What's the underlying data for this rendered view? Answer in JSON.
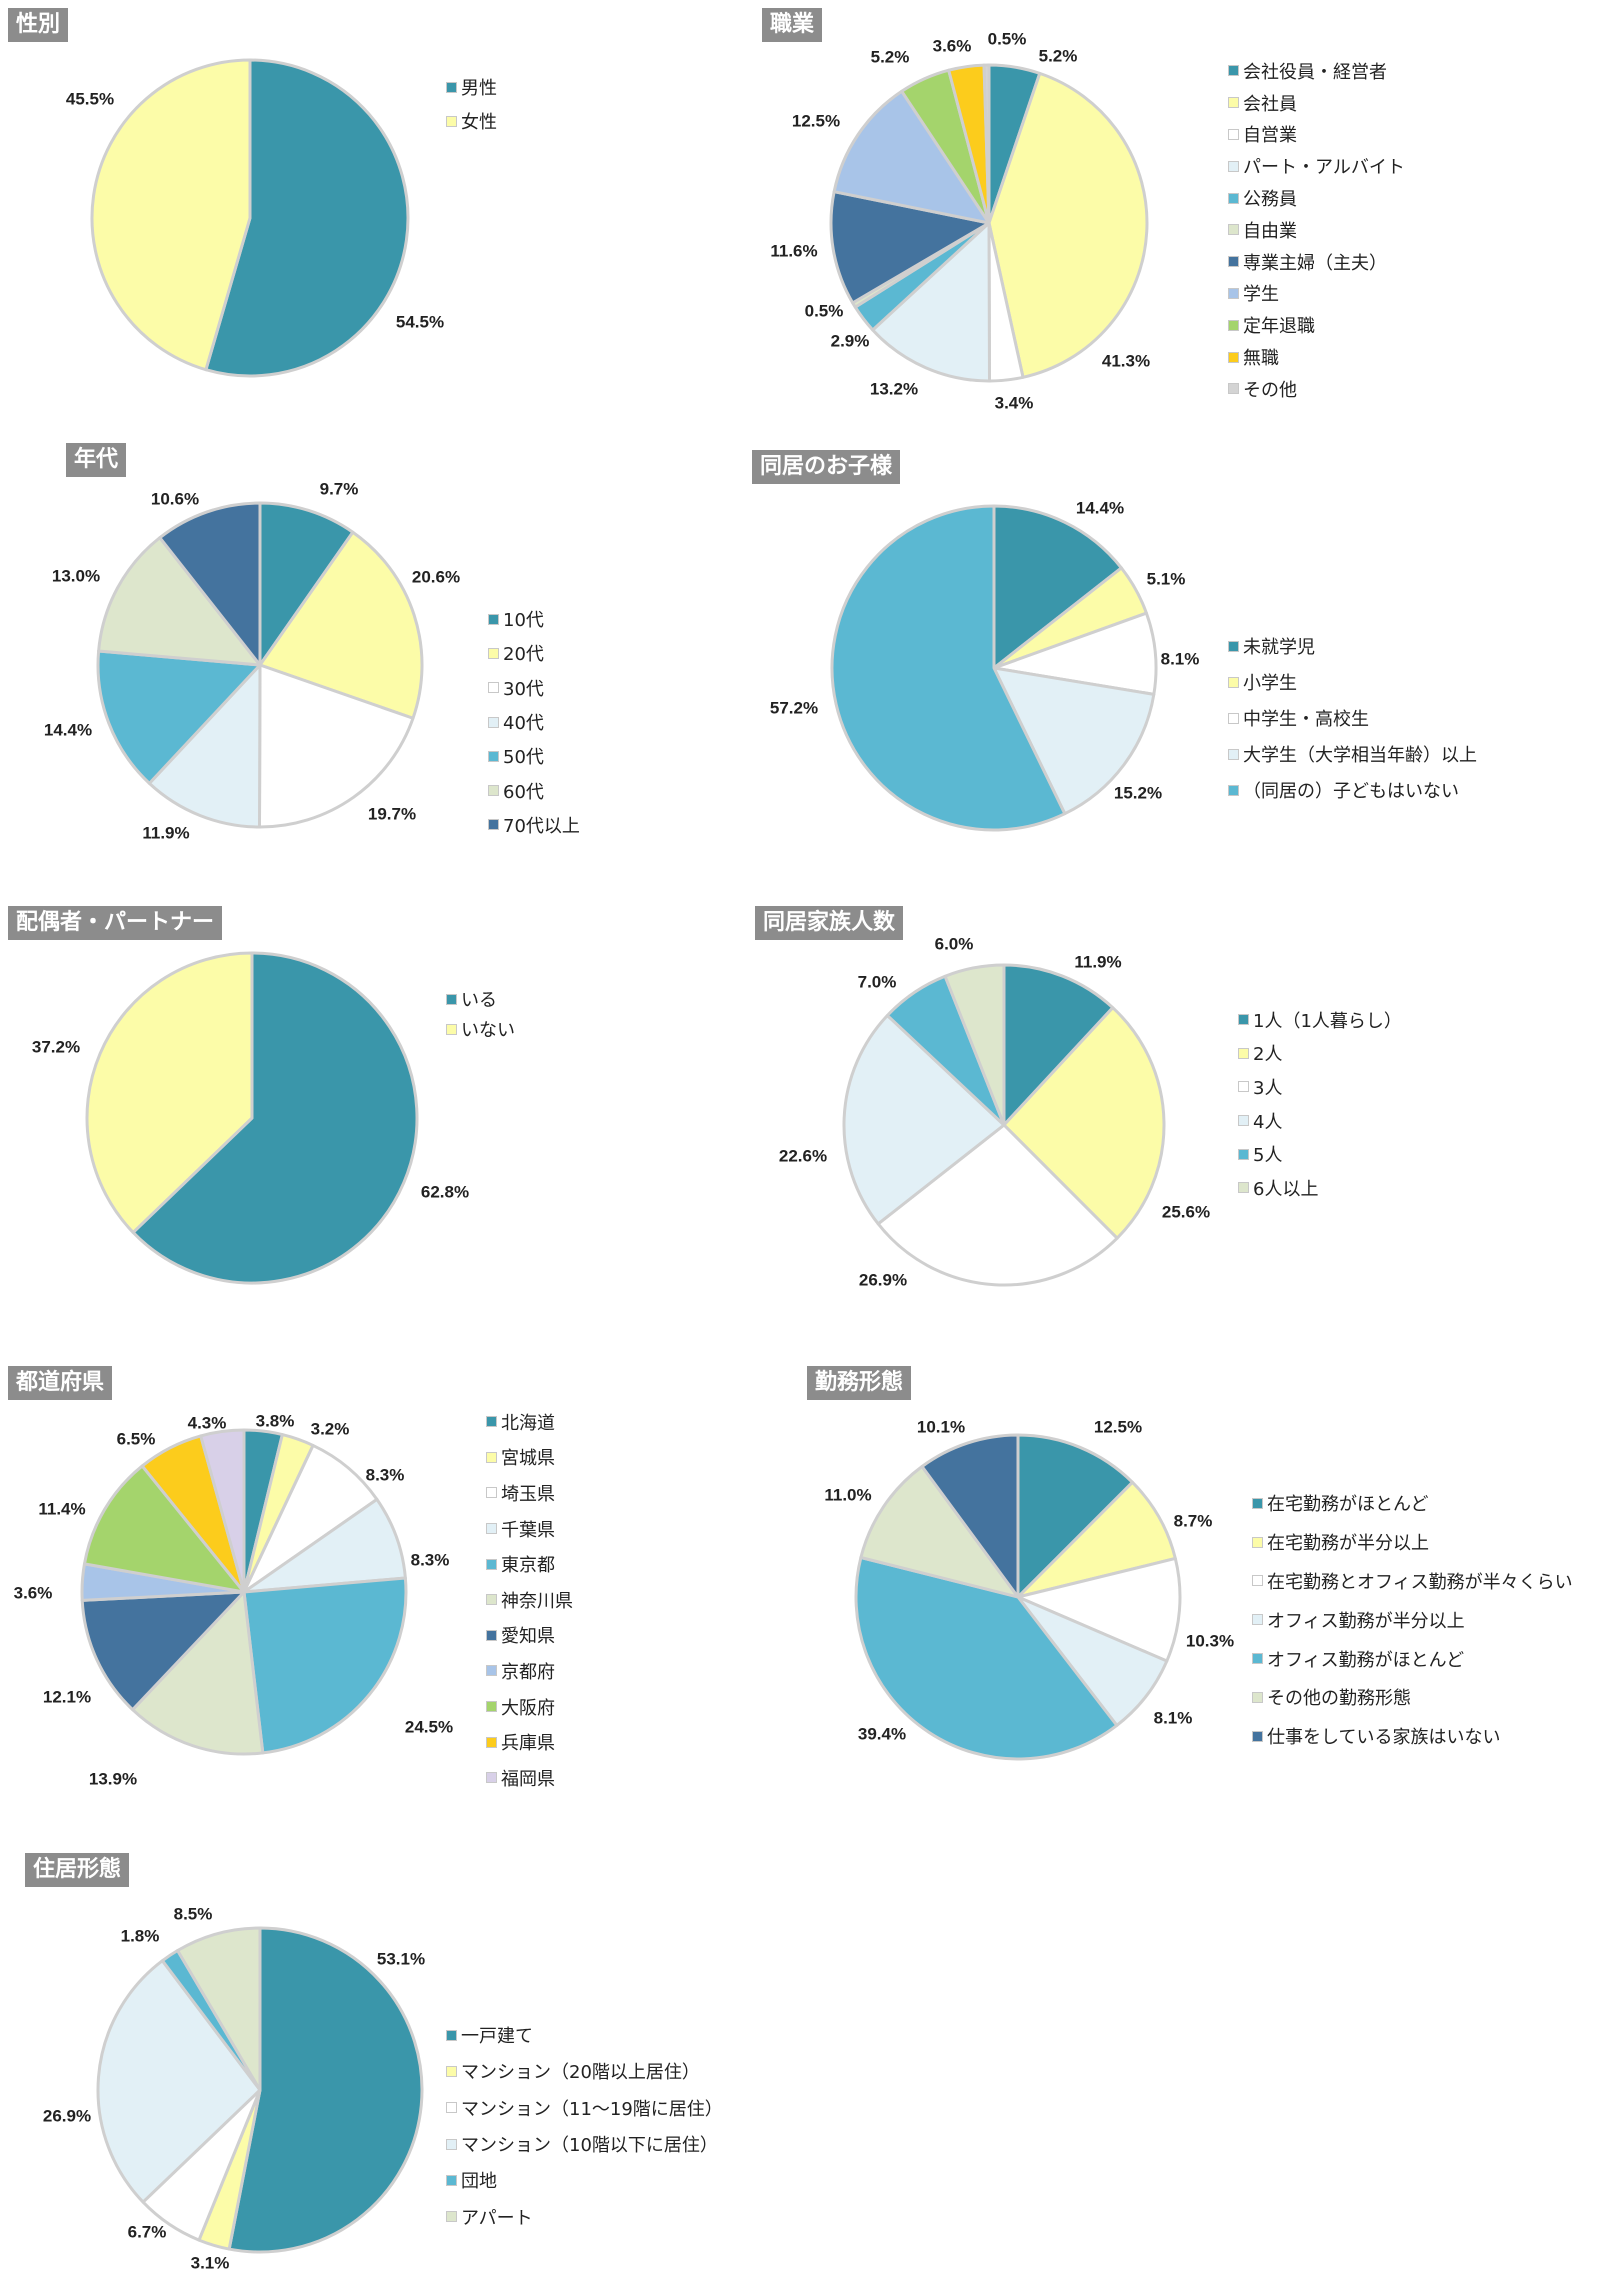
{
  "colors": [
    "#3a96aa",
    "#fcfca8",
    "#ffffff",
    "#e2f0f6",
    "#5bb8d2",
    "#dde6cc",
    "#44739e",
    "#a8c4e8",
    "#a4d46c",
    "#fccc1c",
    "#d4d4d4",
    "#d8d0e8"
  ],
  "chart_data": [
    {
      "id": "gender",
      "type": "pie",
      "title": "性別",
      "labels": [
        "男性",
        "女性"
      ],
      "values": [
        54.5,
        45.5
      ],
      "value_labels": [
        "54.5%",
        "45.5%"
      ],
      "colors": [
        "#3a96aa",
        "#fcfca8"
      ]
    },
    {
      "id": "occupation",
      "type": "pie",
      "title": "職業",
      "labels": [
        "会社役員・経営者",
        "会社員",
        "自営業",
        "パート・アルバイト",
        "公務員",
        "自由業",
        "専業主婦（主夫）",
        "学生",
        "定年退職",
        "無職",
        "その他"
      ],
      "values": [
        5.2,
        41.3,
        3.4,
        13.2,
        2.9,
        0.5,
        11.6,
        12.5,
        5.2,
        3.6,
        0.5
      ],
      "value_labels": [
        "5.2%",
        "41.3%",
        "3.4%",
        "13.2%",
        "2.9%",
        "0.5%",
        "11.6%",
        "12.5%",
        "5.2%",
        "3.6%",
        "0.5%"
      ],
      "colors": [
        "#3a96aa",
        "#fcfca8",
        "#ffffff",
        "#e2f0f6",
        "#5bb8d2",
        "#dde6cc",
        "#44739e",
        "#a8c4e8",
        "#a4d46c",
        "#fccc1c",
        "#d4d4d4"
      ]
    },
    {
      "id": "age",
      "type": "pie",
      "title": "年代",
      "labels": [
        "10代",
        "20代",
        "30代",
        "40代",
        "50代",
        "60代",
        "70代以上"
      ],
      "values": [
        9.7,
        20.6,
        19.7,
        11.9,
        14.4,
        13.0,
        10.6
      ],
      "value_labels": [
        "9.7%",
        "20.6%",
        "19.7%",
        "11.9%",
        "14.4%",
        "13.0%",
        "10.6%"
      ],
      "colors": [
        "#3a96aa",
        "#fcfca8",
        "#ffffff",
        "#e2f0f6",
        "#5bb8d2",
        "#dde6cc",
        "#44739e"
      ]
    },
    {
      "id": "children",
      "type": "pie",
      "title": "同居のお子様",
      "labels": [
        "未就学児",
        "小学生",
        "中学生・高校生",
        "大学生（大学相当年齢）以上",
        "（同居の）子どもはいない"
      ],
      "values": [
        14.4,
        5.1,
        8.1,
        15.2,
        57.2
      ],
      "value_labels": [
        "14.4%",
        "5.1%",
        "8.1%",
        "15.2%",
        "57.2%"
      ],
      "colors": [
        "#3a96aa",
        "#fcfca8",
        "#ffffff",
        "#e2f0f6",
        "#5bb8d2"
      ]
    },
    {
      "id": "partner",
      "type": "pie",
      "title": "配偶者・パートナー",
      "labels": [
        "いる",
        "いない"
      ],
      "values": [
        62.8,
        37.2
      ],
      "value_labels": [
        "62.8%",
        "37.2%"
      ],
      "colors": [
        "#3a96aa",
        "#fcfca8"
      ]
    },
    {
      "id": "household",
      "type": "pie",
      "title": "同居家族人数",
      "labels": [
        "1人（1人暮らし）",
        "2人",
        "3人",
        "4人",
        "5人",
        "6人以上"
      ],
      "values": [
        11.9,
        25.6,
        26.9,
        22.6,
        7.0,
        6.0
      ],
      "value_labels": [
        "11.9%",
        "25.6%",
        "26.9%",
        "22.6%",
        "7.0%",
        "6.0%"
      ],
      "colors": [
        "#3a96aa",
        "#fcfca8",
        "#ffffff",
        "#e2f0f6",
        "#5bb8d2",
        "#dde6cc"
      ]
    },
    {
      "id": "prefecture",
      "type": "pie",
      "title": "都道府県",
      "labels": [
        "北海道",
        "宮城県",
        "埼玉県",
        "千葉県",
        "東京都",
        "神奈川県",
        "愛知県",
        "京都府",
        "大阪府",
        "兵庫県",
        "福岡県"
      ],
      "values": [
        3.8,
        3.2,
        8.3,
        8.3,
        24.5,
        13.9,
        12.1,
        3.6,
        11.4,
        6.5,
        4.3
      ],
      "value_labels": [
        "3.8%",
        "3.2%",
        "8.3%",
        "8.3%",
        "24.5%",
        "13.9%",
        "12.1%",
        "3.6%",
        "11.4%",
        "6.5%",
        "4.3%"
      ],
      "colors": [
        "#3a96aa",
        "#fcfca8",
        "#ffffff",
        "#e2f0f6",
        "#5bb8d2",
        "#dde6cc",
        "#44739e",
        "#a8c4e8",
        "#a4d46c",
        "#fccc1c",
        "#d8d0e8"
      ]
    },
    {
      "id": "workstyle",
      "type": "pie",
      "title": "勤務形態",
      "labels": [
        "在宅勤務がほとんど",
        "在宅勤務が半分以上",
        "在宅勤務とオフィス勤務が半々くらい",
        "オフィス勤務が半分以上",
        "オフィス勤務がほとんど",
        "その他の勤務形態",
        "仕事をしている家族はいない"
      ],
      "values": [
        12.5,
        8.7,
        10.3,
        8.1,
        39.4,
        11.0,
        10.1
      ],
      "value_labels": [
        "12.5%",
        "8.7%",
        "10.3%",
        "8.1%",
        "39.4%",
        "11.0%",
        "10.1%"
      ],
      "colors": [
        "#3a96aa",
        "#fcfca8",
        "#ffffff",
        "#e2f0f6",
        "#5bb8d2",
        "#dde6cc",
        "#44739e"
      ]
    },
    {
      "id": "housing",
      "type": "pie",
      "title": "住居形態",
      "labels": [
        "一戸建て",
        "マンション（20階以上居住）",
        "マンション（11〜19階に居住）",
        "マンション（10階以下に居住）",
        "団地",
        "アパート"
      ],
      "values": [
        53.1,
        3.1,
        6.7,
        26.9,
        1.8,
        8.5
      ],
      "value_labels": [
        "53.1%",
        "3.1%",
        "6.7%",
        "26.9%",
        "1.8%",
        "8.5%"
      ],
      "colors": [
        "#3a96aa",
        "#fcfca8",
        "#ffffff",
        "#e2f0f6",
        "#5bb8d2",
        "#dde6cc"
      ]
    }
  ]
}
